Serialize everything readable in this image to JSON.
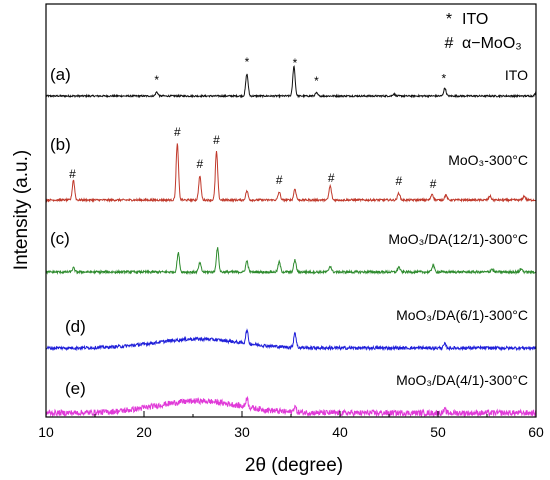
{
  "chart_data": {
    "type": "line",
    "xlabel": "2θ (degree)",
    "ylabel": "Intensity (a.u.)",
    "xlim": [
      10,
      60
    ],
    "xticks": [
      10,
      20,
      30,
      40,
      50,
      60
    ],
    "legend": {
      "placement": "top-right",
      "entries": [
        {
          "symbol": "*",
          "label": "ITO"
        },
        {
          "symbol": "#",
          "label": "α−MoO₃"
        }
      ]
    },
    "series": [
      {
        "panel": "(a)",
        "name": "ITO",
        "color": "#111111",
        "noise": 0.8,
        "peaks": [
          [
            21.3,
            4
          ],
          [
            30.5,
            22
          ],
          [
            35.3,
            30
          ],
          [
            37.6,
            3
          ],
          [
            45.5,
            2
          ],
          [
            50.7,
            8
          ],
          [
            60.0,
            3
          ]
        ],
        "markers": [
          {
            "x": 21.3,
            "symbol": "*"
          },
          {
            "x": 30.5,
            "symbol": "*"
          },
          {
            "x": 35.4,
            "symbol": "*"
          },
          {
            "x": 37.6,
            "symbol": "*"
          },
          {
            "x": 50.6,
            "symbol": "*"
          }
        ]
      },
      {
        "panel": "(b)",
        "name": "MoO₃-300°C",
        "color": "#c0392b",
        "noise": 1.0,
        "peaks": [
          [
            12.8,
            20
          ],
          [
            23.4,
            56
          ],
          [
            25.7,
            24
          ],
          [
            27.4,
            48
          ],
          [
            30.5,
            9
          ],
          [
            33.8,
            8
          ],
          [
            35.4,
            11
          ],
          [
            39.0,
            14
          ],
          [
            46.0,
            7
          ],
          [
            49.4,
            6
          ],
          [
            50.8,
            5
          ],
          [
            55.3,
            4
          ],
          [
            58.8,
            4
          ]
        ],
        "markers": [
          {
            "x": 12.7,
            "symbol": "#"
          },
          {
            "x": 23.4,
            "symbol": "#"
          },
          {
            "x": 25.7,
            "symbol": "#"
          },
          {
            "x": 27.4,
            "symbol": "#"
          },
          {
            "x": 33.8,
            "symbol": "#"
          },
          {
            "x": 39.1,
            "symbol": "#"
          },
          {
            "x": 46.0,
            "symbol": "#"
          },
          {
            "x": 49.5,
            "symbol": "#"
          }
        ]
      },
      {
        "panel": "(c)",
        "name": "MoO₃/DA(12/1)-300°C",
        "color": "#2e8b2e",
        "noise": 1.2,
        "peaks": [
          [
            12.8,
            4
          ],
          [
            23.5,
            19
          ],
          [
            25.7,
            9
          ],
          [
            27.5,
            24
          ],
          [
            30.5,
            11
          ],
          [
            33.8,
            10
          ],
          [
            35.4,
            12
          ],
          [
            39.0,
            6
          ],
          [
            46.0,
            5
          ],
          [
            49.5,
            7
          ],
          [
            55.5,
            3
          ],
          [
            58.5,
            3
          ]
        ],
        "markers": []
      },
      {
        "panel": "(d)",
        "name": "MoO₃/DA(6/1)-300°C",
        "color": "#1f1fd9",
        "noise": 1.0,
        "hump": [
          25.5,
          6,
          9
        ],
        "peaks": [
          [
            30.5,
            13
          ],
          [
            35.4,
            15
          ],
          [
            50.7,
            4
          ]
        ],
        "markers": []
      },
      {
        "panel": "(e)",
        "name": "MoO₃/DA(4/1)-300°C",
        "color": "#e03ad8",
        "noise": 1.8,
        "hump": [
          25.5,
          6,
          12
        ],
        "peaks": [
          [
            30.5,
            9
          ],
          [
            35.4,
            6
          ],
          [
            50.7,
            3
          ]
        ],
        "markers": []
      }
    ]
  }
}
